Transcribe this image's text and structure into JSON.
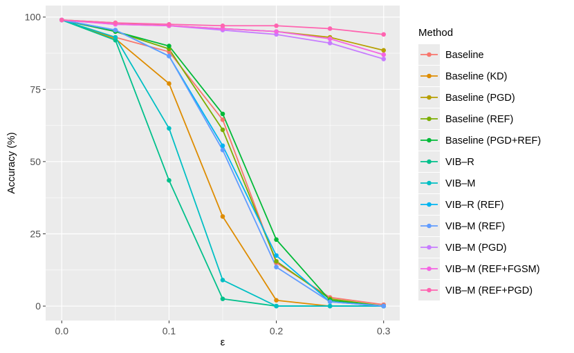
{
  "chart_data": {
    "type": "line",
    "title": "",
    "xlabel": "ε",
    "ylabel": "Accuracy (%)",
    "x": [
      0.0,
      0.05,
      0.1,
      0.15,
      0.2,
      0.25,
      0.3
    ],
    "x_ticks": [
      0.0,
      0.1,
      0.2,
      0.3
    ],
    "x_tick_labels": [
      "0.0",
      "0.1",
      "0.2",
      "0.3"
    ],
    "y_ticks": [
      0,
      25,
      50,
      75,
      100
    ],
    "y_tick_labels": [
      "0",
      "25",
      "50",
      "75",
      "100"
    ],
    "xlim": [
      -0.015,
      0.315
    ],
    "ylim": [
      -5,
      104
    ],
    "grid": true,
    "legend_title": "Method",
    "legend_position": "right",
    "series": [
      {
        "name": "Baseline",
        "color": "#F8766D",
        "values": [
          99,
          93,
          88,
          64.5,
          15,
          3,
          0.5
        ]
      },
      {
        "name": "Baseline (KD)",
        "color": "#DE8C00",
        "values": [
          99,
          92.5,
          77,
          31,
          2,
          0,
          0
        ]
      },
      {
        "name": "Baseline (PGD)",
        "color": "#B79F00",
        "values": [
          99,
          98,
          97,
          96,
          95,
          93,
          88.5
        ]
      },
      {
        "name": "Baseline (REF)",
        "color": "#7CAE00",
        "values": [
          99,
          95,
          89,
          61,
          15.5,
          2.5,
          0
        ]
      },
      {
        "name": "Baseline (PGD+REF)",
        "color": "#00BA38",
        "values": [
          99,
          95,
          90,
          66.5,
          23,
          2,
          0
        ]
      },
      {
        "name": "VIB–R",
        "color": "#00C08B",
        "values": [
          99,
          92,
          43.5,
          2.5,
          0,
          0,
          0
        ]
      },
      {
        "name": "VIB–M",
        "color": "#00BFC4",
        "values": [
          99,
          93,
          61.5,
          9,
          0,
          0,
          0
        ]
      },
      {
        "name": "VIB–R (REF)",
        "color": "#00B4F0",
        "values": [
          99,
          95.5,
          86.5,
          55.5,
          17.5,
          1.5,
          0
        ]
      },
      {
        "name": "VIB–M (REF)",
        "color": "#619CFF",
        "values": [
          99,
          95.5,
          86.5,
          54,
          13.5,
          1.5,
          0
        ]
      },
      {
        "name": "VIB–M (PGD)",
        "color": "#C77CFF",
        "values": [
          99,
          97.5,
          97,
          95.5,
          94,
          91,
          85.5
        ]
      },
      {
        "name": "VIB–M (REF+FGSM)",
        "color": "#F564E3",
        "values": [
          99,
          97.5,
          97,
          96,
          95,
          92.5,
          87
        ]
      },
      {
        "name": "VIB–M (REF+PGD)",
        "color": "#FF64B0",
        "values": [
          99,
          98,
          97.5,
          97,
          97,
          96,
          94
        ]
      }
    ]
  }
}
